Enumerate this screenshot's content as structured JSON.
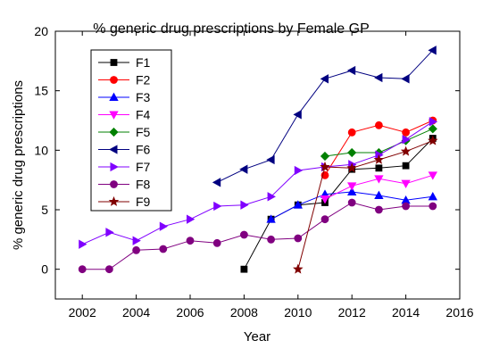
{
  "chart_data": {
    "type": "line",
    "title": "% generic drug prescriptions by Female GP",
    "xlabel": "Year",
    "ylabel": "% generic drug prescriptions",
    "xlim": [
      2001,
      2016
    ],
    "ylim": [
      -2.5,
      20
    ],
    "xticks": [
      2002,
      2004,
      2006,
      2008,
      2010,
      2012,
      2014,
      2016
    ],
    "yticks": [
      0,
      5,
      10,
      15,
      20
    ],
    "grid": false,
    "legend_position": "top-left",
    "series": [
      {
        "name": "F1",
        "color": "#000000",
        "marker": "square",
        "x": [
          2008,
          2009,
          2010,
          2011,
          2012,
          2013,
          2014,
          2015
        ],
        "y": [
          0.0,
          4.2,
          5.4,
          5.6,
          8.4,
          8.5,
          8.7,
          11.0
        ]
      },
      {
        "name": "F2",
        "color": "#ff0000",
        "marker": "circle",
        "x": [
          2011,
          2012,
          2013,
          2014,
          2015
        ],
        "y": [
          7.9,
          11.5,
          12.1,
          11.5,
          12.5
        ]
      },
      {
        "name": "F3",
        "color": "#0000ff",
        "marker": "triangle-up",
        "x": [
          2009,
          2010,
          2011,
          2012,
          2013,
          2014,
          2015
        ],
        "y": [
          4.2,
          5.4,
          6.3,
          6.5,
          6.2,
          5.8,
          6.1
        ]
      },
      {
        "name": "F4",
        "color": "#ff00ff",
        "marker": "triangle-down",
        "x": [
          2011,
          2012,
          2013,
          2014,
          2015
        ],
        "y": [
          5.9,
          7.0,
          7.6,
          7.2,
          7.9
        ]
      },
      {
        "name": "F5",
        "color": "#008000",
        "marker": "diamond",
        "x": [
          2011,
          2012,
          2013,
          2014,
          2015
        ],
        "y": [
          9.5,
          9.8,
          9.8,
          10.8,
          11.8
        ]
      },
      {
        "name": "F6",
        "color": "#000080",
        "marker": "triangle-left",
        "x": [
          2007,
          2008,
          2009,
          2010,
          2011,
          2012,
          2013,
          2014,
          2015
        ],
        "y": [
          7.3,
          8.4,
          9.2,
          13.0,
          16.0,
          16.7,
          16.1,
          16.0,
          18.4
        ]
      },
      {
        "name": "F7",
        "color": "#8000ff",
        "marker": "triangle-right",
        "x": [
          2002,
          2003,
          2004,
          2005,
          2006,
          2007,
          2008,
          2009,
          2010,
          2011,
          2012,
          2013,
          2014,
          2015
        ],
        "y": [
          2.1,
          3.1,
          2.4,
          3.6,
          4.2,
          5.3,
          5.4,
          6.1,
          8.3,
          8.6,
          8.8,
          9.6,
          10.9,
          12.4
        ]
      },
      {
        "name": "F8",
        "color": "#800080",
        "marker": "circle",
        "x": [
          2002,
          2003,
          2004,
          2005,
          2006,
          2007,
          2008,
          2009,
          2010,
          2011,
          2012,
          2013,
          2014,
          2015
        ],
        "y": [
          0.0,
          0.0,
          1.6,
          1.7,
          2.4,
          2.2,
          2.9,
          2.5,
          2.6,
          4.2,
          5.6,
          5.0,
          5.3,
          5.3
        ]
      },
      {
        "name": "F9",
        "color": "#800000",
        "marker": "star",
        "x": [
          2010,
          2011,
          2012,
          2013,
          2014,
          2015
        ],
        "y": [
          0.0,
          8.6,
          8.5,
          9.2,
          9.9,
          10.8
        ]
      }
    ]
  }
}
